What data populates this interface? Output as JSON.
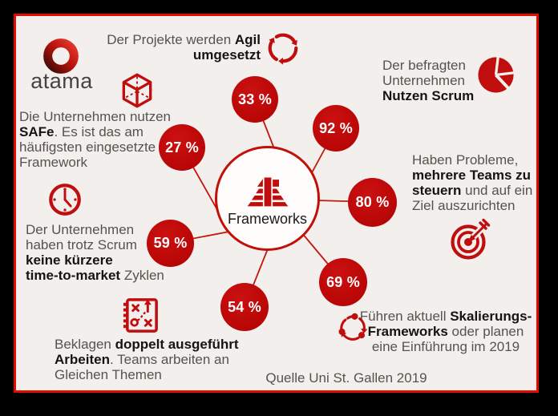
{
  "brand": {
    "logo_text": "atama",
    "logo_icon": "ring-logo-icon"
  },
  "hub": {
    "label": "Frameworks",
    "icon": "step-pyramid-icon"
  },
  "stats": [
    {
      "id": "agile",
      "pct": "33 %",
      "icon": "cycle-arrows-icon",
      "text": "Der Projekte werden **Agil**\n**umgesetzt**"
    },
    {
      "id": "scrum",
      "pct": "92 %",
      "icon": "pie-chart-icon",
      "text": "Der befragten\nUnternehmen\n**Nutzen Scrum**"
    },
    {
      "id": "teams",
      "pct": "80 %",
      "icon": "target-dart-icon",
      "text": "Haben Probleme,\n**mehrere Teams zu**\n**steuern** und auf ein\nZiel auszurichten"
    },
    {
      "id": "scaling",
      "pct": "69 %",
      "icon": "process-cycle-icon",
      "text": "Führen aktuell **Skalierungs-**\n**Frameworks** oder planen\neine Einführung im 2019"
    },
    {
      "id": "duplicate-work",
      "pct": "54 %",
      "icon": "strategy-plan-icon",
      "text": "Beklagen **doppelt ausgeführt**\n**Arbeiten**. Teams arbeiten an\nGleichen Themen"
    },
    {
      "id": "time-to-market",
      "pct": "59 %",
      "icon": "clock-icon",
      "text": "Der Unternehmen\nhaben trotz Scrum\n**keine kürzere**\n**time-to-market** Zyklen"
    },
    {
      "id": "safe",
      "pct": "27 %",
      "icon": "cube-icon",
      "text": "Die Unternehmen nutzen\n**SAFe**. Es ist das am\nhäufigsten eingesetzte\nFramework"
    }
  ],
  "source": "Quelle Uni St. Gallen 2019",
  "colors": {
    "accent": "#c00d0d",
    "panel_bg": "#f2efec",
    "frame": "#000000",
    "text": "#57524e",
    "text_strong": "#171310",
    "circle_text": "#ffffff"
  }
}
